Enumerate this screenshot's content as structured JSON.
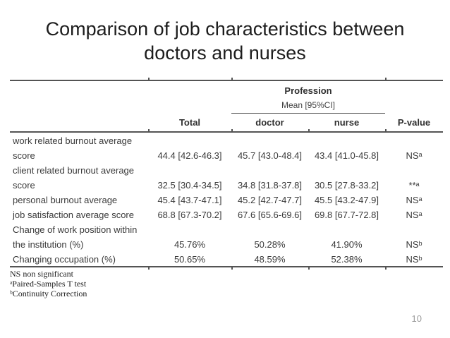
{
  "slide": {
    "title": {
      "line1": "Comparison of job characteristics between",
      "line2": "doctors and nurses"
    },
    "page_number": "10"
  },
  "table": {
    "header": {
      "profession_label": "Profession",
      "mean_ci_label": "Mean [95%CI]",
      "columns": {
        "total": "Total",
        "doctor": "doctor",
        "nurse": "nurse",
        "pvalue": "P-value"
      }
    },
    "rows": [
      {
        "label": "work related burnout average",
        "total": "",
        "doctor": "",
        "nurse": "",
        "pvalue": ""
      },
      {
        "label": "score",
        "total": "44.4 [42.6-46.3]",
        "doctor": "45.7 [43.0-48.4]",
        "nurse": "43.4 [41.0-45.8]",
        "pvalue": "NSᵃ"
      },
      {
        "label": "client related burnout average",
        "total": "",
        "doctor": "",
        "nurse": "",
        "pvalue": ""
      },
      {
        "label": "score",
        "total": "32.5 [30.4-34.5]",
        "doctor": "34.8 [31.8-37.8]",
        "nurse": "30.5 [27.8-33.2]",
        "pvalue": "**ᵃ"
      },
      {
        "label": "personal burnout average",
        "total": "45.4 [43.7-47.1]",
        "doctor": "45.2 [42.7-47.7]",
        "nurse": "45.5 [43.2-47.9]",
        "pvalue": "NSᵃ"
      },
      {
        "label": "job satisfaction average score",
        "total": "68.8 [67.3-70.2]",
        "doctor": "67.6 [65.6-69.6]",
        "nurse": "69.8 [67.7-72.8]",
        "pvalue": "NSᵃ"
      },
      {
        "label": "Change of work position within",
        "total": "",
        "doctor": "",
        "nurse": "",
        "pvalue": ""
      },
      {
        "label": "the institution (%)",
        "total": "45.76%",
        "doctor": "50.28%",
        "nurse": "41.90%",
        "pvalue": "NSᵇ"
      },
      {
        "label": "Changing occupation (%)",
        "total": "50.65%",
        "doctor": "48.59%",
        "nurse": "52.38%",
        "pvalue": "NSᵇ"
      }
    ],
    "footnotes": [
      "NS non significant",
      "ᵃPaired-Samples T test",
      "ᵇContinuity Correction"
    ]
  },
  "colors": {
    "rule_gray": "#545454",
    "table_text": "#3a3a3a",
    "title_text": "#1d1d1d",
    "page_number_gray": "#9b9b9b"
  }
}
